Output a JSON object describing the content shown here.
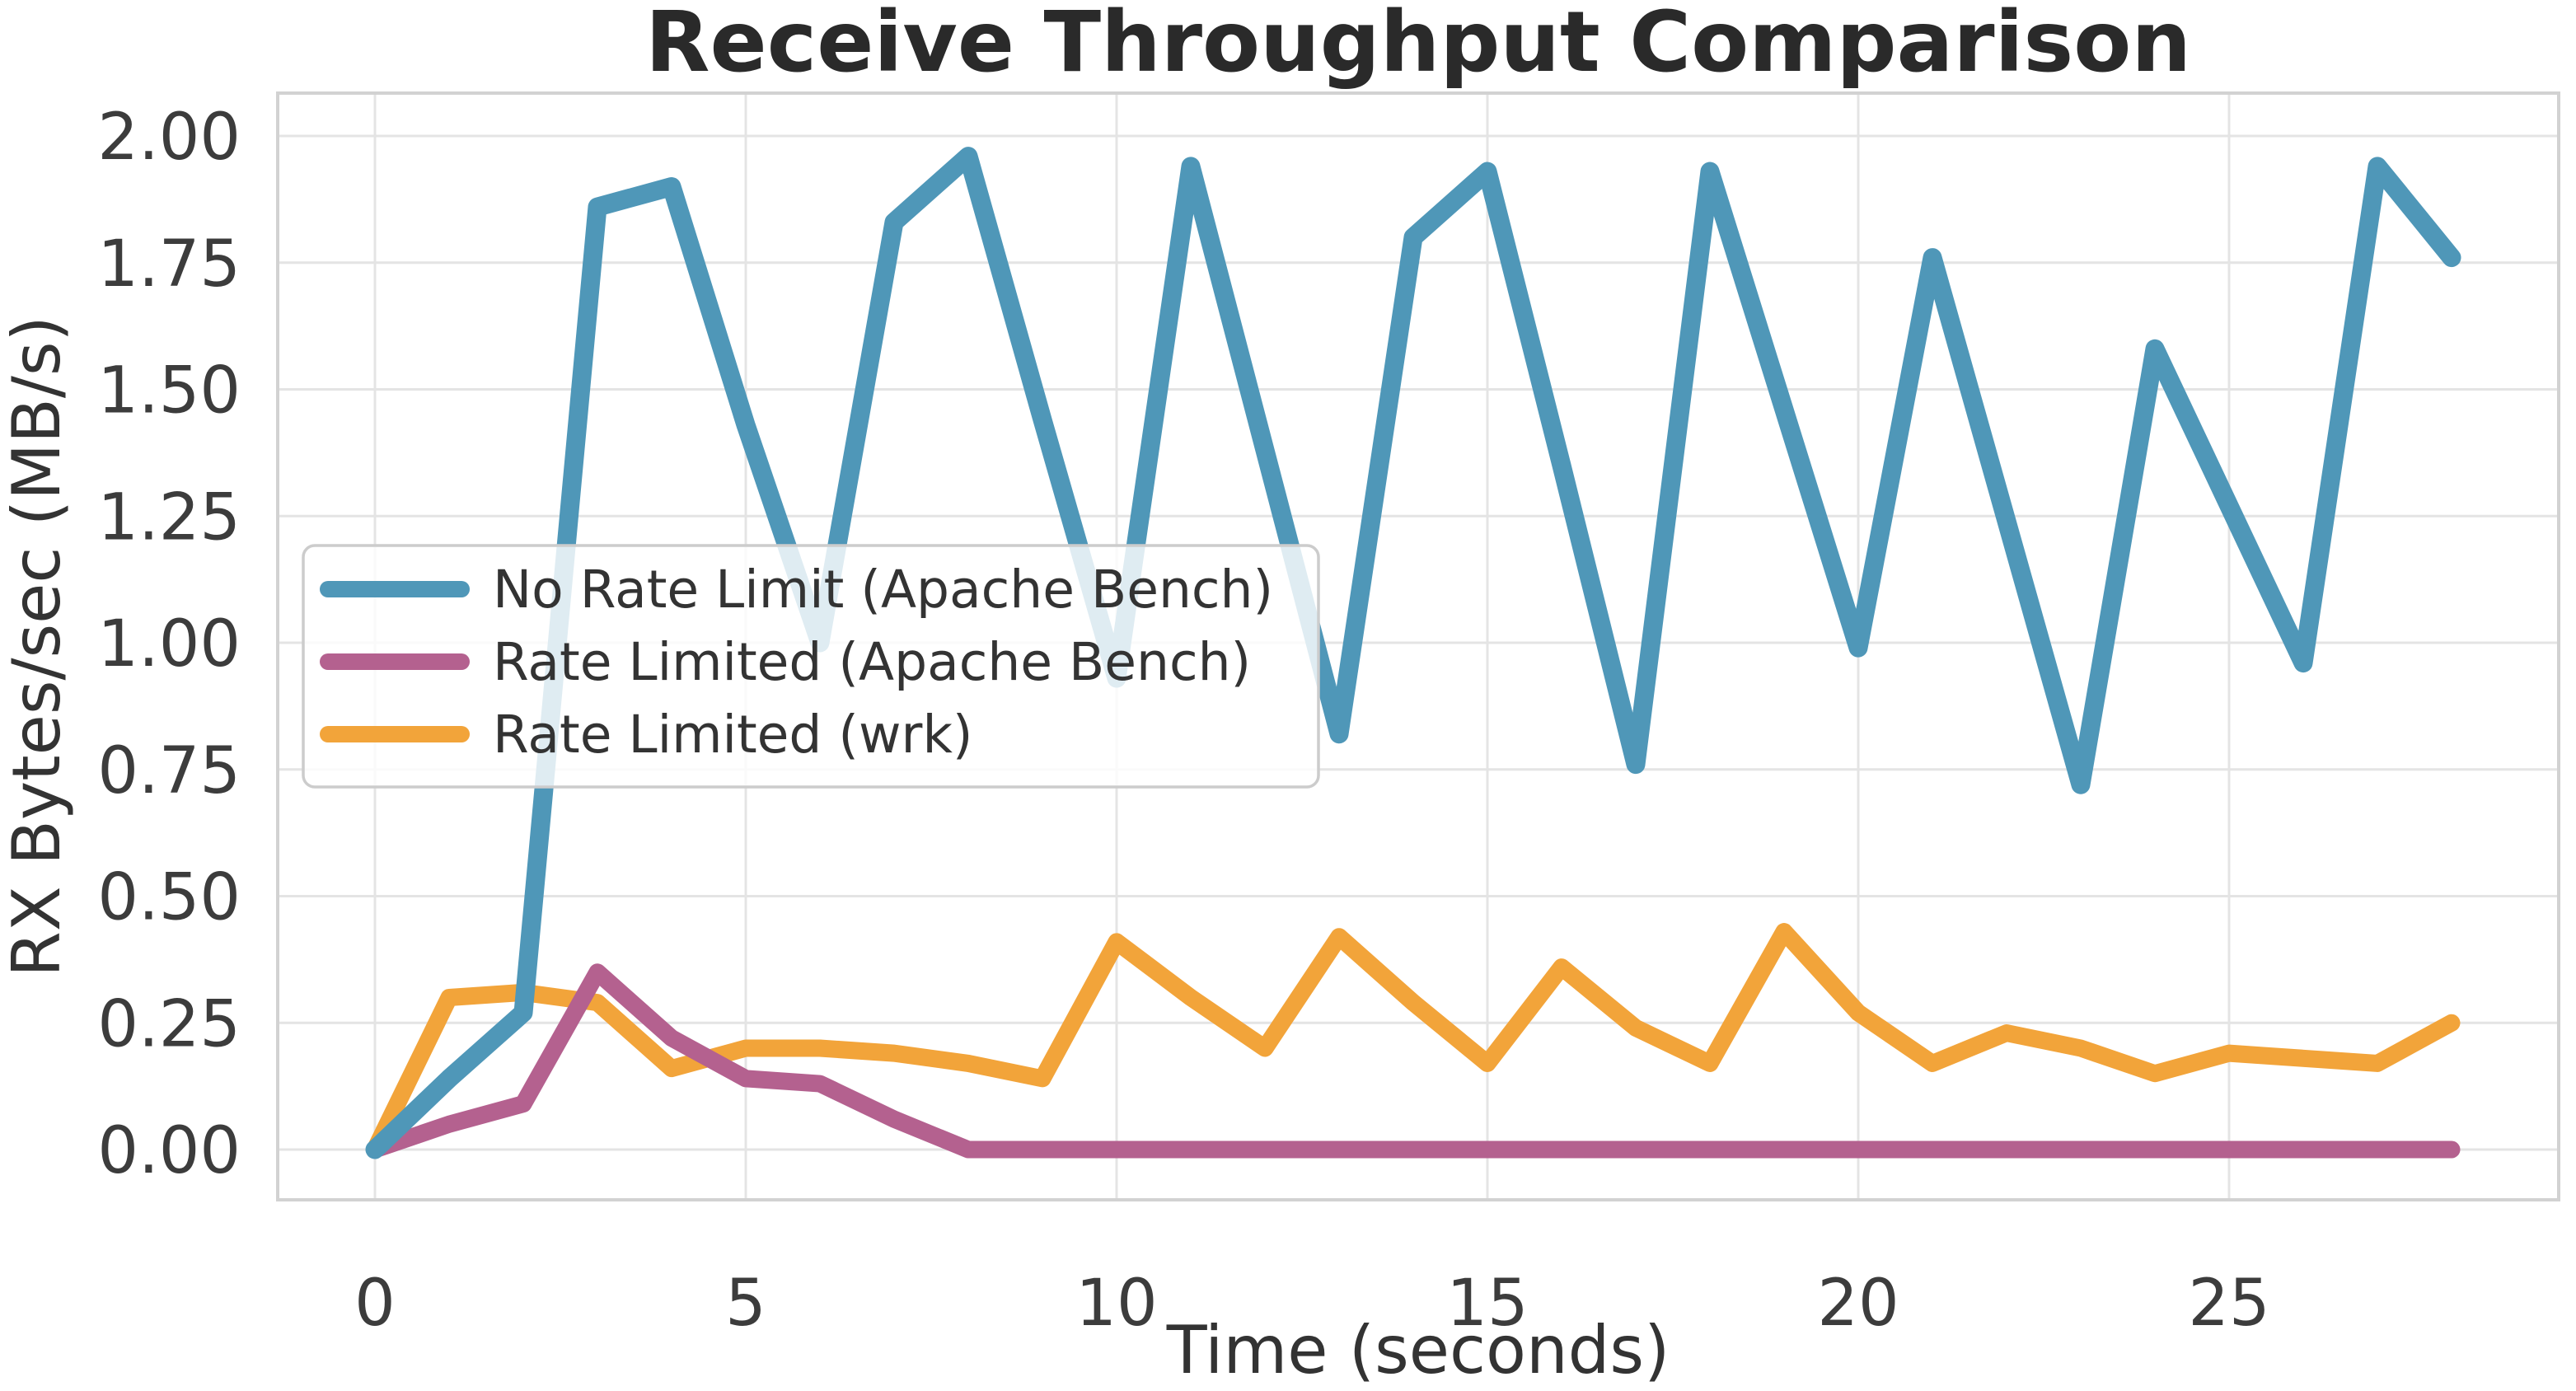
{
  "page": {
    "background": "#ffffff"
  },
  "chart_data": {
    "type": "line",
    "title": "Receive Throughput Comparison",
    "xlabel": "Time (seconds)",
    "ylabel": "RX Bytes/sec (MB/s)",
    "grid": true,
    "legend_position": "center-left",
    "xlim": [
      -1.3,
      29.45
    ],
    "ylim": [
      -0.1,
      2.09
    ],
    "xticks": [
      0,
      5,
      10,
      15,
      20,
      25
    ],
    "yticks": [
      0.0,
      0.25,
      0.5,
      0.75,
      1.0,
      1.25,
      1.5,
      1.75,
      2.0
    ],
    "ytick_labels": [
      "0.00",
      "0.25",
      "0.50",
      "0.75",
      "1.00",
      "1.25",
      "1.50",
      "1.75",
      "2.00"
    ],
    "x": [
      0,
      1,
      2,
      3,
      4,
      5,
      6,
      7,
      8,
      9,
      10,
      11,
      12,
      13,
      14,
      15,
      16,
      17,
      18,
      19,
      20,
      21,
      22,
      23,
      24,
      25,
      26,
      27,
      28
    ],
    "series": [
      {
        "name": "No Rate Limit (Apache Bench)",
        "color": "#4f97b8",
        "values": [
          0.0,
          0.14,
          0.27,
          1.86,
          1.9,
          1.43,
          1.0,
          1.83,
          1.96,
          1.44,
          0.93,
          1.94,
          1.38,
          0.82,
          1.8,
          1.93,
          1.35,
          0.76,
          1.93,
          1.46,
          0.99,
          1.76,
          1.24,
          0.72,
          1.58,
          1.27,
          0.96,
          1.94,
          1.76
        ]
      },
      {
        "name": "Rate Limited (Apache Bench)",
        "color": "#b4618f",
        "values": [
          0.0,
          0.05,
          0.09,
          0.35,
          0.22,
          0.14,
          0.13,
          0.06,
          0.0,
          0.0,
          0.0,
          0.0,
          0.0,
          0.0,
          0.0,
          0.0,
          0.0,
          0.0,
          0.0,
          0.0,
          0.0,
          0.0,
          0.0,
          0.0,
          0.0,
          0.0,
          0.0,
          0.0,
          0.0
        ]
      },
      {
        "name": "Rate Limited (wrk)",
        "color": "#f2a43a",
        "values": [
          0.0,
          0.3,
          0.31,
          0.29,
          0.16,
          0.2,
          0.2,
          0.19,
          0.17,
          0.14,
          0.41,
          0.3,
          0.2,
          0.42,
          0.29,
          0.17,
          0.36,
          0.24,
          0.17,
          0.43,
          0.27,
          0.17,
          0.23,
          0.2,
          0.15,
          0.19,
          0.18,
          0.17,
          0.25
        ]
      }
    ],
    "style": {
      "grid_color": "#e4e4e4",
      "spine_color": "#d2d2d2",
      "title_color": "#2a2a2a",
      "label_color": "#333333",
      "tick_color": "#3c3c3c",
      "legend_border": "#cccccc",
      "legend_bg": "#ffffff"
    }
  }
}
